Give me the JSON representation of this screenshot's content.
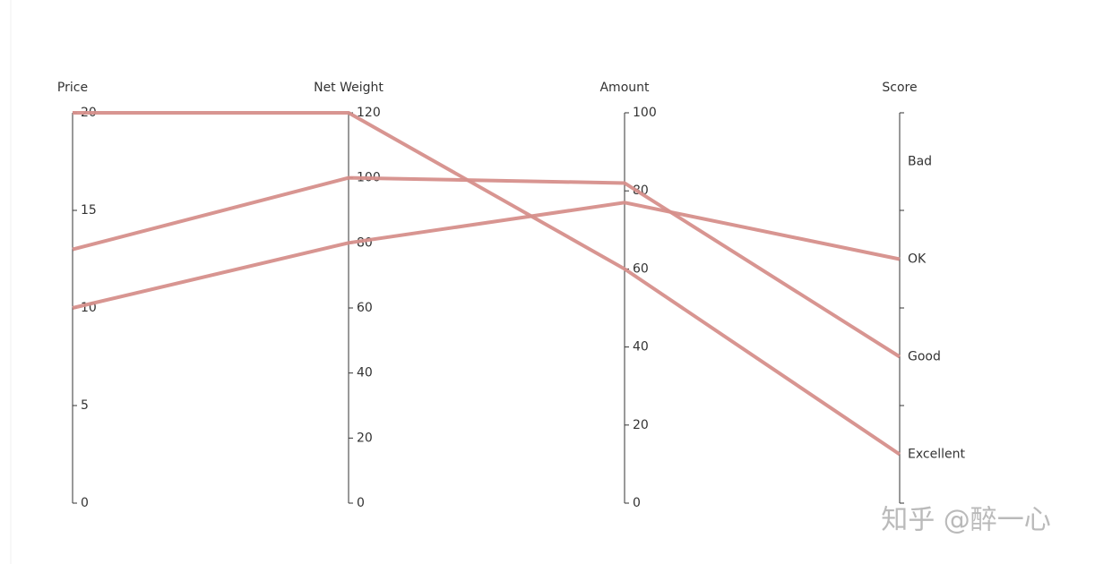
{
  "chart_data": {
    "type": "parallel",
    "axes": [
      {
        "name": "Price",
        "lim": [
          0,
          20
        ],
        "ticks": [
          0,
          5,
          10,
          15,
          20
        ]
      },
      {
        "name": "Net Weight",
        "lim": [
          0,
          120
        ],
        "ticks": [
          0,
          20,
          40,
          60,
          80,
          100,
          120
        ]
      },
      {
        "name": "Amount",
        "lim": [
          0,
          100
        ],
        "ticks": [
          0,
          20,
          40,
          60,
          80,
          100
        ]
      },
      {
        "name": "Score",
        "categories": [
          "Excellent",
          "Good",
          "OK",
          "Bad"
        ]
      }
    ],
    "series": [
      {
        "color": "#d68f8b",
        "values": [
          20,
          120,
          60,
          "Excellent"
        ]
      },
      {
        "color": "#d68f8b",
        "values": [
          13,
          100,
          82,
          "Good"
        ]
      },
      {
        "color": "#d68f8b",
        "values": [
          10,
          80,
          77,
          "OK"
        ]
      }
    ],
    "watermark": "知乎 @醉一心"
  }
}
